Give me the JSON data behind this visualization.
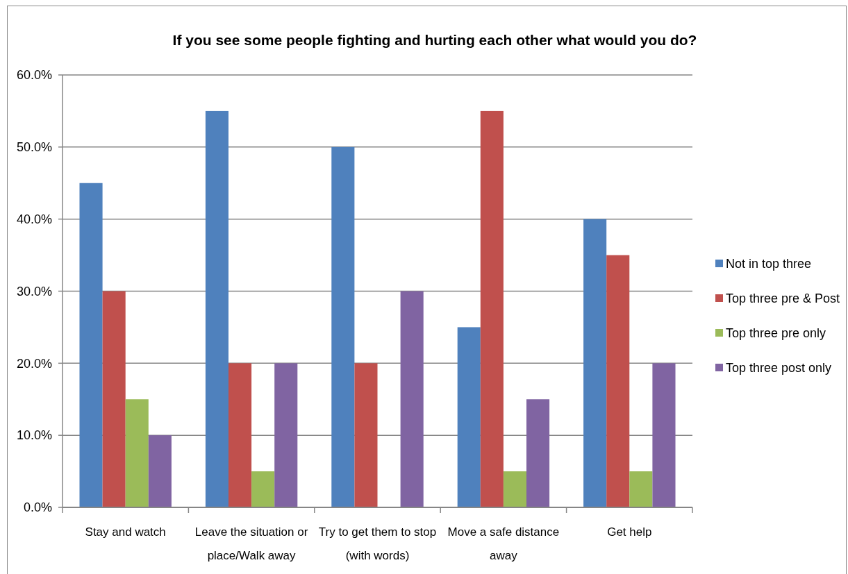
{
  "chart_data": {
    "type": "bar",
    "title": "If you see some people fighting and hurting each other what would you do?",
    "categories": [
      "Stay and watch",
      "Leave the situation or place/Walk away",
      "Try to get them to stop (with words)",
      "Move a safe distance away",
      "Get help"
    ],
    "series": [
      {
        "name": "Not in top three",
        "color": "#4f81bd",
        "values": [
          45,
          55,
          50,
          25,
          40
        ]
      },
      {
        "name": "Top three pre & Post",
        "color": "#c0504d",
        "values": [
          30,
          20,
          20,
          55,
          35
        ]
      },
      {
        "name": "Top three pre only",
        "color": "#9bbb59",
        "values": [
          15,
          5,
          0,
          5,
          5
        ]
      },
      {
        "name": "Top three post only",
        "color": "#8064a2",
        "values": [
          10,
          20,
          30,
          15,
          20
        ]
      }
    ],
    "ylim": [
      0,
      60
    ],
    "yticks": [
      {
        "value": 0,
        "label": "0.0%"
      },
      {
        "value": 10,
        "label": "10.0%"
      },
      {
        "value": 20,
        "label": "20.0%"
      },
      {
        "value": 30,
        "label": "30.0%"
      },
      {
        "value": 40,
        "label": "40.0%"
      },
      {
        "value": 50,
        "label": "50.0%"
      },
      {
        "value": 60,
        "label": "60.0%"
      }
    ],
    "grid": "y",
    "legend": "right"
  }
}
